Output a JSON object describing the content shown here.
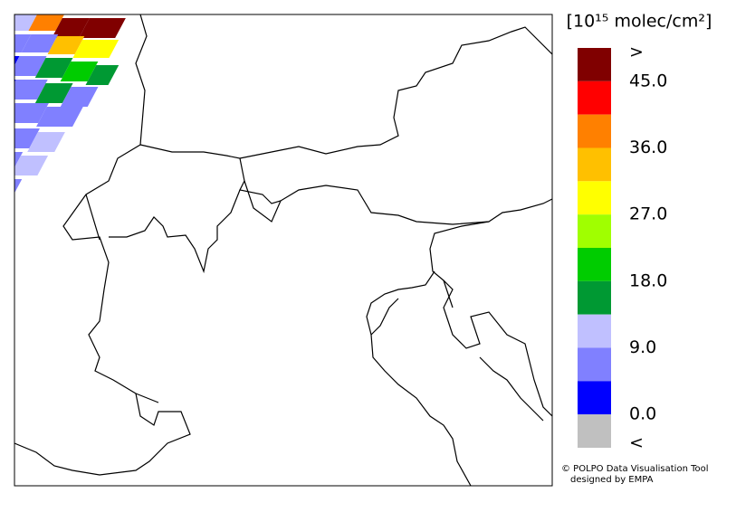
{
  "legend": {
    "title": "[10¹⁵ molec/cm²]",
    "colors": [
      "#800000",
      "#ff0000",
      "#ff8000",
      "#ffc000",
      "#ffff00",
      "#a0ff00",
      "#00cc00",
      "#009933",
      "#c0c0ff",
      "#8080ff",
      "#0000ff",
      "#c0c0c0"
    ],
    "labels": [
      ">",
      "45.0",
      "36.0",
      "27.0",
      "18.0",
      "9.0",
      "0.0",
      "<"
    ]
  },
  "credits": [
    "© POLPO Data Visualisation Tool",
    "designed by EMPA"
  ]
}
